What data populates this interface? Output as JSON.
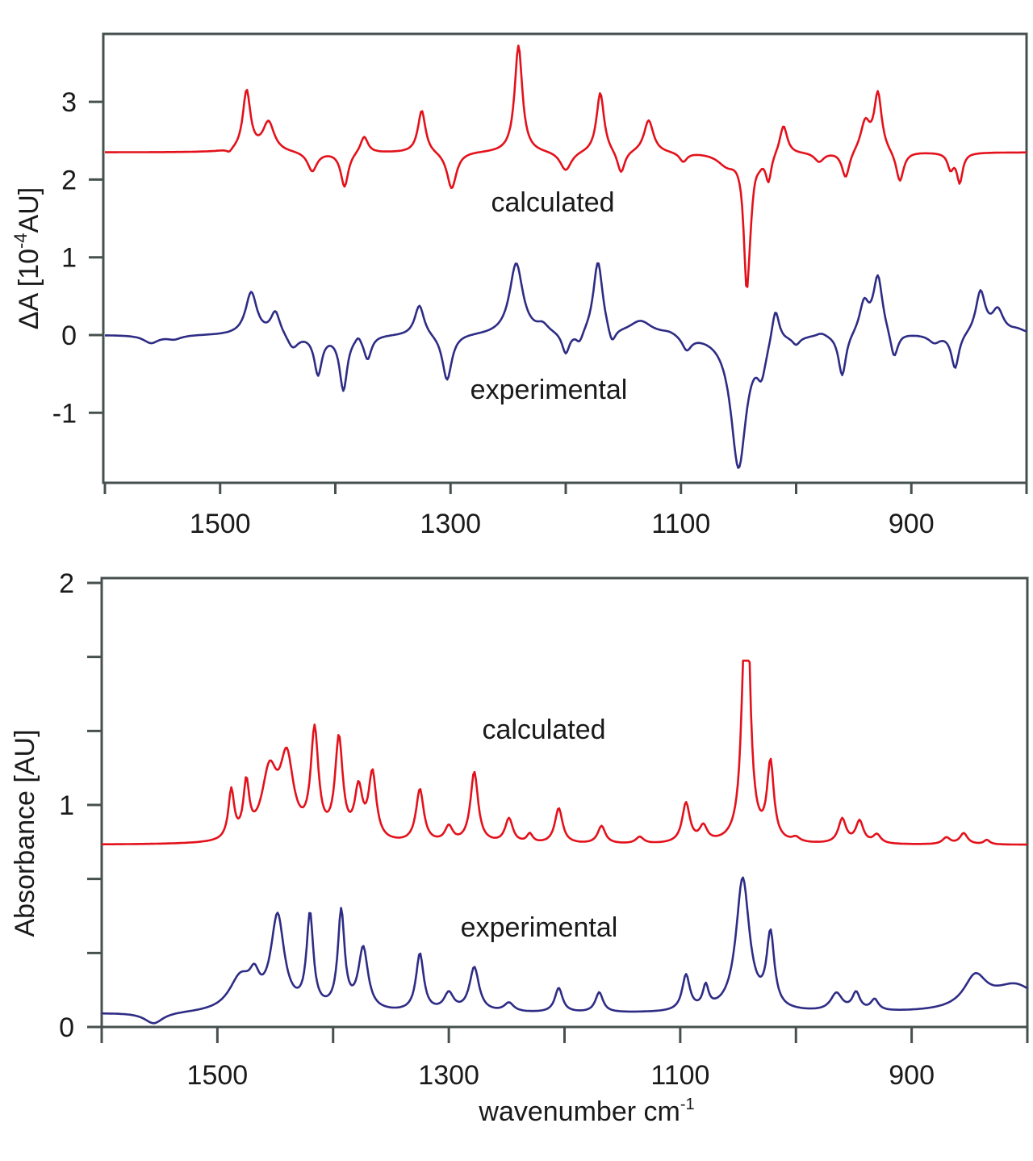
{
  "chart_data": [
    {
      "type": "line",
      "panel": "top",
      "title": "",
      "xlabel": "",
      "ylabel": "ΔA [10⁻⁴AU]",
      "ylabel_parts": {
        "prefix": "ΔA [10",
        "sup": "-4",
        "suffix": "AU]"
      },
      "xlim": [
        1600,
        800
      ],
      "ylim": [
        -1.9,
        3.9
      ],
      "x_ticks": [
        1600,
        1500,
        1400,
        1300,
        1200,
        1100,
        1000,
        900,
        800
      ],
      "x_tick_labels": [
        {
          "value": 1500,
          "label": "1500"
        },
        {
          "value": 1300,
          "label": "1300"
        },
        {
          "value": 1100,
          "label": "1100"
        },
        {
          "value": 900,
          "label": "900"
        }
      ],
      "y_ticks": [
        {
          "value": 3,
          "label": "3"
        },
        {
          "value": 2,
          "label": "2"
        },
        {
          "value": 1,
          "label": "1"
        },
        {
          "value": 0,
          "label": "0"
        },
        {
          "value": -1,
          "label": "-1"
        }
      ],
      "grid": false,
      "annotations": [
        {
          "text": "calculated",
          "x": 1290,
          "y": 1.7
        },
        {
          "text": "experimental",
          "x": 1290,
          "y": -0.7
        }
      ],
      "series": [
        {
          "name": "calculated",
          "color": "#e3111b",
          "baseline": 2.35,
          "x_range": [
            1600,
            800
          ],
          "peaks": [
            {
              "x": 1492,
              "a": -0.05,
              "w": 3
            },
            {
              "x": 1477,
              "a": 0.78,
              "w": 4
            },
            {
              "x": 1458,
              "a": 0.38,
              "w": 6
            },
            {
              "x": 1420,
              "a": -0.25,
              "w": 5
            },
            {
              "x": 1392,
              "a": -0.45,
              "w": 4
            },
            {
              "x": 1375,
              "a": 0.22,
              "w": 4
            },
            {
              "x": 1325,
              "a": 0.55,
              "w": 4
            },
            {
              "x": 1299,
              "a": -0.48,
              "w": 5
            },
            {
              "x": 1241,
              "a": 1.38,
              "w": 4
            },
            {
              "x": 1200,
              "a": -0.25,
              "w": 6
            },
            {
              "x": 1170,
              "a": 0.78,
              "w": 4
            },
            {
              "x": 1152,
              "a": -0.3,
              "w": 4
            },
            {
              "x": 1128,
              "a": 0.42,
              "w": 5
            },
            {
              "x": 1098,
              "a": -0.12,
              "w": 4
            },
            {
              "x": 1060,
              "a": -0.15,
              "w": 10
            },
            {
              "x": 1043,
              "a": -1.55,
              "w": 3
            },
            {
              "x": 1040,
              "a": -0.35,
              "w": 3
            },
            {
              "x": 1032,
              "a": -0.06,
              "w": 3
            },
            {
              "x": 1024,
              "a": -0.35,
              "w": 3
            },
            {
              "x": 1011,
              "a": 0.38,
              "w": 4
            },
            {
              "x": 980,
              "a": -0.12,
              "w": 5
            },
            {
              "x": 957,
              "a": -0.35,
              "w": 4
            },
            {
              "x": 940,
              "a": 0.38,
              "w": 5
            },
            {
              "x": 929,
              "a": 0.75,
              "w": 4
            },
            {
              "x": 910,
              "a": -0.4,
              "w": 4
            },
            {
              "x": 866,
              "a": -0.2,
              "w": 3
            },
            {
              "x": 858,
              "a": -0.38,
              "w": 3
            }
          ]
        },
        {
          "name": "experimental",
          "color": "#2e2c85",
          "baseline": 0.0,
          "x_range": [
            1600,
            800
          ],
          "peaks": [
            {
              "x": 1560,
              "a": -0.1,
              "w": 8
            },
            {
              "x": 1540,
              "a": -0.05,
              "w": 8
            },
            {
              "x": 1473,
              "a": 0.55,
              "w": 6
            },
            {
              "x": 1452,
              "a": 0.3,
              "w": 5
            },
            {
              "x": 1437,
              "a": -0.18,
              "w": 6
            },
            {
              "x": 1415,
              "a": -0.5,
              "w": 4
            },
            {
              "x": 1393,
              "a": -0.7,
              "w": 4
            },
            {
              "x": 1380,
              "a": 0.08,
              "w": 3
            },
            {
              "x": 1372,
              "a": -0.3,
              "w": 4
            },
            {
              "x": 1327,
              "a": 0.4,
              "w": 5
            },
            {
              "x": 1303,
              "a": -0.6,
              "w": 5
            },
            {
              "x": 1243,
              "a": 0.92,
              "w": 7
            },
            {
              "x": 1220,
              "a": 0.1,
              "w": 6
            },
            {
              "x": 1200,
              "a": -0.28,
              "w": 4
            },
            {
              "x": 1188,
              "a": -0.15,
              "w": 4
            },
            {
              "x": 1172,
              "a": 0.95,
              "w": 5
            },
            {
              "x": 1160,
              "a": -0.22,
              "w": 4
            },
            {
              "x": 1135,
              "a": 0.18,
              "w": 12
            },
            {
              "x": 1110,
              "a": 0.05,
              "w": 10
            },
            {
              "x": 1095,
              "a": -0.18,
              "w": 5
            },
            {
              "x": 1050,
              "a": -1.7,
              "w": 8
            },
            {
              "x": 1030,
              "a": -0.4,
              "w": 5
            },
            {
              "x": 1018,
              "a": 0.45,
              "w": 4
            },
            {
              "x": 1000,
              "a": -0.1,
              "w": 4
            },
            {
              "x": 978,
              "a": 0.05,
              "w": 6
            },
            {
              "x": 960,
              "a": -0.55,
              "w": 4
            },
            {
              "x": 941,
              "a": 0.4,
              "w": 5
            },
            {
              "x": 929,
              "a": 0.75,
              "w": 5
            },
            {
              "x": 915,
              "a": -0.35,
              "w": 4
            },
            {
              "x": 880,
              "a": -0.1,
              "w": 6
            },
            {
              "x": 862,
              "a": -0.45,
              "w": 4
            },
            {
              "x": 840,
              "a": 0.55,
              "w": 5
            },
            {
              "x": 825,
              "a": 0.3,
              "w": 6
            },
            {
              "x": 808,
              "a": 0.05,
              "w": 8
            }
          ]
        }
      ]
    },
    {
      "type": "line",
      "panel": "bottom",
      "title": "",
      "xlabel": "wavenumber cm⁻¹",
      "xlabel_parts": {
        "prefix": "wavenumber cm",
        "sup": "-1"
      },
      "ylabel": "Absorbance [AU]",
      "xlim": [
        1600,
        800
      ],
      "ylim": [
        0,
        2
      ],
      "x_ticks": [
        1600,
        1500,
        1400,
        1300,
        1200,
        1100,
        1000,
        900,
        800
      ],
      "x_tick_labels": [
        {
          "value": 1500,
          "label": "1500"
        },
        {
          "value": 1300,
          "label": "1300"
        },
        {
          "value": 1100,
          "label": "1100"
        },
        {
          "value": 900,
          "label": "900"
        }
      ],
      "y_ticks": [
        {
          "value": 2,
          "label": "2"
        },
        {
          "value": 1.667,
          "label": ""
        },
        {
          "value": 1.333,
          "label": ""
        },
        {
          "value": 1,
          "label": "1"
        },
        {
          "value": 0.667,
          "label": ""
        },
        {
          "value": 0.333,
          "label": ""
        },
        {
          "value": 0,
          "label": "0"
        }
      ],
      "grid": false,
      "annotations": [
        {
          "text": "calculated",
          "x": 1270,
          "y": 1.27
        },
        {
          "text": "experimental",
          "x": 1270,
          "y": 0.45
        }
      ],
      "series": [
        {
          "name": "calculated",
          "color": "#e3111b",
          "baseline": 0.82,
          "x_range": [
            1600,
            800
          ],
          "clip_top": 1.65,
          "peaks": [
            {
              "x": 1488,
              "a": 0.22,
              "w": 3
            },
            {
              "x": 1475,
              "a": 0.24,
              "w": 3
            },
            {
              "x": 1455,
              "a": 0.3,
              "w": 8
            },
            {
              "x": 1440,
              "a": 0.35,
              "w": 7
            },
            {
              "x": 1416,
              "a": 0.48,
              "w": 4
            },
            {
              "x": 1395,
              "a": 0.45,
              "w": 4
            },
            {
              "x": 1378,
              "a": 0.22,
              "w": 4
            },
            {
              "x": 1366,
              "a": 0.3,
              "w": 4
            },
            {
              "x": 1325,
              "a": 0.24,
              "w": 4
            },
            {
              "x": 1300,
              "a": 0.07,
              "w": 4
            },
            {
              "x": 1278,
              "a": 0.32,
              "w": 4
            },
            {
              "x": 1248,
              "a": 0.11,
              "w": 4
            },
            {
              "x": 1230,
              "a": 0.04,
              "w": 3
            },
            {
              "x": 1205,
              "a": 0.16,
              "w": 4
            },
            {
              "x": 1168,
              "a": 0.08,
              "w": 4
            },
            {
              "x": 1135,
              "a": 0.03,
              "w": 4
            },
            {
              "x": 1095,
              "a": 0.18,
              "w": 4
            },
            {
              "x": 1080,
              "a": 0.07,
              "w": 4
            },
            {
              "x": 1043,
              "a": 1.4,
              "w": 3.5
            },
            {
              "x": 1022,
              "a": 0.35,
              "w": 3.5
            },
            {
              "x": 1000,
              "a": 0.02,
              "w": 4
            },
            {
              "x": 960,
              "a": 0.11,
              "w": 4
            },
            {
              "x": 945,
              "a": 0.1,
              "w": 4
            },
            {
              "x": 930,
              "a": 0.04,
              "w": 4
            },
            {
              "x": 870,
              "a": 0.03,
              "w": 4
            },
            {
              "x": 855,
              "a": 0.05,
              "w": 4
            },
            {
              "x": 835,
              "a": 0.02,
              "w": 3
            }
          ]
        },
        {
          "name": "experimental",
          "color": "#2e2c85",
          "baseline": 0.06,
          "x_range": [
            1600,
            800
          ],
          "peaks": [
            {
              "x": 1555,
              "a": -0.05,
              "w": 10
            },
            {
              "x": 1480,
              "a": 0.15,
              "w": 12
            },
            {
              "x": 1468,
              "a": 0.1,
              "w": 5
            },
            {
              "x": 1448,
              "a": 0.42,
              "w": 7
            },
            {
              "x": 1420,
              "a": 0.42,
              "w": 3.5
            },
            {
              "x": 1393,
              "a": 0.44,
              "w": 3.5
            },
            {
              "x": 1374,
              "a": 0.28,
              "w": 5
            },
            {
              "x": 1325,
              "a": 0.26,
              "w": 4
            },
            {
              "x": 1300,
              "a": 0.08,
              "w": 5
            },
            {
              "x": 1278,
              "a": 0.2,
              "w": 5
            },
            {
              "x": 1248,
              "a": 0.04,
              "w": 5
            },
            {
              "x": 1205,
              "a": 0.11,
              "w": 4
            },
            {
              "x": 1170,
              "a": 0.09,
              "w": 4
            },
            {
              "x": 1095,
              "a": 0.16,
              "w": 4
            },
            {
              "x": 1078,
              "a": 0.1,
              "w": 3
            },
            {
              "x": 1046,
              "a": 0.6,
              "w": 7
            },
            {
              "x": 1022,
              "a": 0.33,
              "w": 4
            },
            {
              "x": 965,
              "a": 0.08,
              "w": 6
            },
            {
              "x": 948,
              "a": 0.08,
              "w": 4
            },
            {
              "x": 932,
              "a": 0.05,
              "w": 4
            },
            {
              "x": 845,
              "a": 0.14,
              "w": 12
            },
            {
              "x": 810,
              "a": 0.12,
              "w": 25
            }
          ]
        }
      ]
    }
  ]
}
